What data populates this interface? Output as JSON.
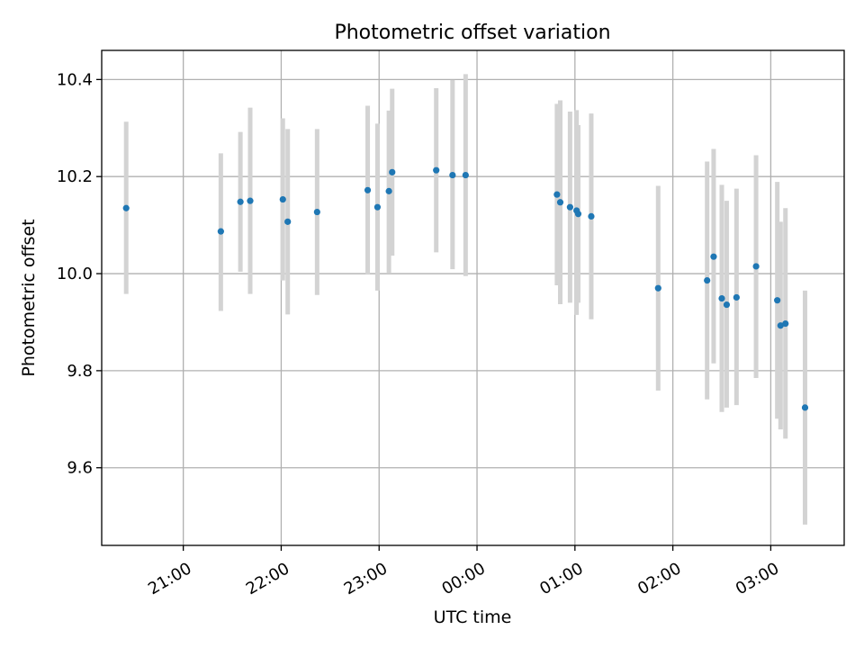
{
  "chart_data": {
    "type": "scatter",
    "title": "Photometric offset variation",
    "xlabel": "UTC time",
    "ylabel": "Photometric offset",
    "xlim": [
      "20:10",
      "27:45"
    ],
    "ylim": [
      9.44,
      10.46
    ],
    "x_ticks": [
      {
        "value": "21:00",
        "label": "21:00"
      },
      {
        "value": "22:00",
        "label": "22:00"
      },
      {
        "value": "23:00",
        "label": "23:00"
      },
      {
        "value": "24:00",
        "label": "00:00"
      },
      {
        "value": "25:00",
        "label": "01:00"
      },
      {
        "value": "26:00",
        "label": "02:00"
      },
      {
        "value": "27:00",
        "label": "03:00"
      }
    ],
    "y_ticks": [
      9.6,
      9.8,
      10.0,
      10.2,
      10.4
    ],
    "grid": true,
    "series": [
      {
        "color": "#1f77b4",
        "error_color": "#d3d3d3",
        "points": [
          {
            "time": "20:25",
            "value": 10.135,
            "low": 9.958,
            "high": 10.313
          },
          {
            "time": "21:23",
            "value": 10.087,
            "low": 9.923,
            "high": 10.248
          },
          {
            "time": "21:35",
            "value": 10.148,
            "low": 10.004,
            "high": 10.292
          },
          {
            "time": "21:41",
            "value": 10.15,
            "low": 9.958,
            "high": 10.342
          },
          {
            "time": "22:01",
            "value": 10.153,
            "low": 9.986,
            "high": 10.32
          },
          {
            "time": "22:04",
            "value": 10.107,
            "low": 9.916,
            "high": 10.298
          },
          {
            "time": "22:22",
            "value": 10.127,
            "low": 9.956,
            "high": 10.298
          },
          {
            "time": "22:53",
            "value": 10.172,
            "low": 9.998,
            "high": 10.346
          },
          {
            "time": "22:59",
            "value": 10.137,
            "low": 9.965,
            "high": 10.309
          },
          {
            "time": "23:06",
            "value": 10.17,
            "low": 10.002,
            "high": 10.336
          },
          {
            "time": "23:08",
            "value": 10.209,
            "low": 10.037,
            "high": 10.381
          },
          {
            "time": "23:35",
            "value": 10.213,
            "low": 10.044,
            "high": 10.382
          },
          {
            "time": "23:45",
            "value": 10.203,
            "low": 10.009,
            "high": 10.399
          },
          {
            "time": "23:53",
            "value": 10.203,
            "low": 9.995,
            "high": 10.411
          },
          {
            "time": "24:49",
            "value": 10.163,
            "low": 9.976,
            "high": 10.35
          },
          {
            "time": "24:51",
            "value": 10.147,
            "low": 9.937,
            "high": 10.357
          },
          {
            "time": "24:57",
            "value": 10.137,
            "low": 9.94,
            "high": 10.334
          },
          {
            "time": "25:01",
            "value": 10.13,
            "low": 9.915,
            "high": 10.337
          },
          {
            "time": "25:02",
            "value": 10.123,
            "low": 9.94,
            "high": 10.306
          },
          {
            "time": "25:10",
            "value": 10.118,
            "low": 9.906,
            "high": 10.33
          },
          {
            "time": "25:51",
            "value": 9.97,
            "low": 9.759,
            "high": 10.181
          },
          {
            "time": "26:21",
            "value": 9.986,
            "low": 9.741,
            "high": 10.231
          },
          {
            "time": "26:25",
            "value": 10.035,
            "low": 9.815,
            "high": 10.257
          },
          {
            "time": "26:30",
            "value": 9.949,
            "low": 9.715,
            "high": 10.183
          },
          {
            "time": "26:33",
            "value": 9.936,
            "low": 9.724,
            "high": 10.15
          },
          {
            "time": "26:39",
            "value": 9.951,
            "low": 9.729,
            "high": 10.175
          },
          {
            "time": "26:51",
            "value": 10.015,
            "low": 9.785,
            "high": 10.244
          },
          {
            "time": "27:04",
            "value": 9.945,
            "low": 9.701,
            "high": 10.189
          },
          {
            "time": "27:06",
            "value": 9.893,
            "low": 9.679,
            "high": 10.107
          },
          {
            "time": "27:09",
            "value": 9.897,
            "low": 9.66,
            "high": 10.135
          },
          {
            "time": "27:21",
            "value": 9.724,
            "low": 9.483,
            "high": 9.965
          }
        ]
      }
    ]
  }
}
